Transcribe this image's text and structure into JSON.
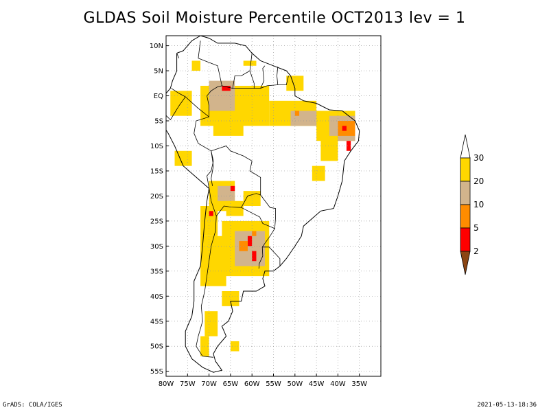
{
  "title": "GLDAS Soil Moisture Percentile OCT2013 lev = 1",
  "footer": {
    "left": "GrADS: COLA/IGES",
    "right": "2021-05-13-18:36"
  },
  "map": {
    "lon_range": [
      -80,
      -30
    ],
    "lat_range": [
      -56,
      12
    ],
    "lat_ticks": [
      {
        "v": 10,
        "label": "10N"
      },
      {
        "v": 5,
        "label": "5N"
      },
      {
        "v": 0,
        "label": "EQ"
      },
      {
        "v": -5,
        "label": "5S"
      },
      {
        "v": -10,
        "label": "10S"
      },
      {
        "v": -15,
        "label": "15S"
      },
      {
        "v": -20,
        "label": "20S"
      },
      {
        "v": -25,
        "label": "25S"
      },
      {
        "v": -30,
        "label": "30S"
      },
      {
        "v": -35,
        "label": "35S"
      },
      {
        "v": -40,
        "label": "40S"
      },
      {
        "v": -45,
        "label": "45S"
      },
      {
        "v": -50,
        "label": "50S"
      },
      {
        "v": -55,
        "label": "55S"
      }
    ],
    "lon_ticks": [
      {
        "v": -80,
        "label": "80W"
      },
      {
        "v": -75,
        "label": "75W"
      },
      {
        "v": -70,
        "label": "70W"
      },
      {
        "v": -65,
        "label": "65W"
      },
      {
        "v": -60,
        "label": "60W"
      },
      {
        "v": -55,
        "label": "55W"
      },
      {
        "v": -50,
        "label": "50W"
      },
      {
        "v": -45,
        "label": "45W"
      },
      {
        "v": -40,
        "label": "40W"
      },
      {
        "v": -35,
        "label": "35W"
      }
    ],
    "grid": true
  },
  "colorbar": {
    "levels": [
      "2",
      "5",
      "10",
      "20",
      "30"
    ],
    "colors": [
      "#8B4513",
      "#FF0000",
      "#FF8C00",
      "#D2B48C",
      "#FFD700",
      "#FFFFFF"
    ]
  },
  "colors": {
    "yellow": "#FFD700",
    "tan": "#D2B48C",
    "orange": "#FF8C00",
    "red": "#FF0000"
  },
  "regions": [
    {
      "class": "yellow",
      "lon": [
        -72,
        -56
      ],
      "lat": [
        -6,
        2
      ]
    },
    {
      "class": "yellow",
      "lon": [
        -56,
        -45
      ],
      "lat": [
        -6,
        -1
      ]
    },
    {
      "class": "yellow",
      "lon": [
        -79,
        -74
      ],
      "lat": [
        -4,
        1
      ]
    },
    {
      "class": "yellow",
      "lon": [
        -69,
        -62
      ],
      "lat": [
        -8,
        -5
      ]
    },
    {
      "class": "tan",
      "lon": [
        -70,
        -64
      ],
      "lat": [
        -3,
        3
      ]
    },
    {
      "class": "tan",
      "lon": [
        -51,
        -44
      ],
      "lat": [
        -6,
        -3
      ]
    },
    {
      "class": "yellow",
      "lon": [
        -45,
        -36
      ],
      "lat": [
        -9,
        -3
      ]
    },
    {
      "class": "tan",
      "lon": [
        -42,
        -36
      ],
      "lat": [
        -9,
        -4
      ]
    },
    {
      "class": "orange",
      "lon": [
        -40,
        -36
      ],
      "lat": [
        -8,
        -5
      ]
    },
    {
      "class": "yellow",
      "lon": [
        -44,
        -40
      ],
      "lat": [
        -13,
        -8
      ]
    },
    {
      "class": "yellow",
      "lon": [
        -52,
        -48
      ],
      "lat": [
        1,
        4
      ]
    },
    {
      "class": "yellow",
      "lon": [
        -70,
        -64
      ],
      "lat": [
        -23,
        -17
      ]
    },
    {
      "class": "tan",
      "lon": [
        -68,
        -64
      ],
      "lat": [
        -21,
        -18
      ]
    },
    {
      "class": "yellow",
      "lon": [
        -67,
        -56
      ],
      "lat": [
        -36,
        -25
      ]
    },
    {
      "class": "tan",
      "lon": [
        -64,
        -57
      ],
      "lat": [
        -34,
        -27
      ]
    },
    {
      "class": "yellow",
      "lon": [
        -72,
        -66
      ],
      "lat": [
        -38,
        -28
      ]
    },
    {
      "class": "yellow",
      "lon": [
        -72,
        -68
      ],
      "lat": [
        -28,
        -22
      ]
    },
    {
      "class": "yellow",
      "lon": [
        -66,
        -62
      ],
      "lat": [
        -24,
        -21
      ]
    },
    {
      "class": "yellow",
      "lon": [
        -62,
        -58
      ],
      "lat": [
        -22,
        -19
      ]
    },
    {
      "class": "yellow",
      "lon": [
        -78,
        -74
      ],
      "lat": [
        -14,
        -11
      ]
    },
    {
      "class": "yellow",
      "lon": [
        -67,
        -63
      ],
      "lat": [
        -42,
        -39
      ]
    },
    {
      "class": "yellow",
      "lon": [
        -71,
        -68
      ],
      "lat": [
        -48,
        -43
      ]
    },
    {
      "class": "yellow",
      "lon": [
        -72,
        -70
      ],
      "lat": [
        -52,
        -48
      ]
    },
    {
      "class": "yellow",
      "lon": [
        -65,
        -63
      ],
      "lat": [
        -51,
        -49
      ]
    },
    {
      "class": "yellow",
      "lon": [
        -74,
        -72
      ],
      "lat": [
        5,
        7
      ]
    },
    {
      "class": "yellow",
      "lon": [
        -62,
        -59
      ],
      "lat": [
        6,
        7
      ]
    },
    {
      "class": "yellow",
      "lon": [
        -46,
        -43
      ],
      "lat": [
        -17,
        -14
      ]
    }
  ],
  "hotspots": [
    {
      "class": "red",
      "lon": [
        -67,
        -65
      ],
      "lat": [
        1,
        2
      ]
    },
    {
      "class": "red",
      "lon": [
        -39,
        -38
      ],
      "lat": [
        -7,
        -6
      ]
    },
    {
      "class": "red",
      "lon": [
        -38,
        -37
      ],
      "lat": [
        -11,
        -9
      ]
    },
    {
      "class": "red",
      "lon": [
        -61,
        -60
      ],
      "lat": [
        -30,
        -28
      ]
    },
    {
      "class": "red",
      "lon": [
        -60,
        -59
      ],
      "lat": [
        -33,
        -31
      ]
    },
    {
      "class": "orange",
      "lon": [
        -63,
        -61
      ],
      "lat": [
        -31,
        -29
      ]
    },
    {
      "class": "red",
      "lon": [
        -70,
        -69
      ],
      "lat": [
        -24,
        -23
      ]
    },
    {
      "class": "orange",
      "lon": [
        -60,
        -59
      ],
      "lat": [
        -28,
        -27
      ]
    },
    {
      "class": "orange",
      "lon": [
        -50,
        -49
      ],
      "lat": [
        -4,
        -3
      ]
    },
    {
      "class": "red",
      "lon": [
        -65,
        -64
      ],
      "lat": [
        -19,
        -18
      ]
    }
  ],
  "coastline": [
    [
      -77.5,
      8.5
    ],
    [
      -76,
      9
    ],
    [
      -74,
      11
    ],
    [
      -72,
      12
    ],
    [
      -70,
      11.5
    ],
    [
      -68,
      10.5
    ],
    [
      -64,
      10.5
    ],
    [
      -61.5,
      10
    ],
    [
      -60,
      8.5
    ],
    [
      -58,
      7
    ],
    [
      -55,
      6
    ],
    [
      -52,
      5
    ],
    [
      -51,
      4
    ],
    [
      -50,
      1.5
    ],
    [
      -50,
      0
    ],
    [
      -48,
      -1
    ],
    [
      -45,
      -1.5
    ],
    [
      -42,
      -2.8
    ],
    [
      -39,
      -3
    ],
    [
      -36,
      -5
    ],
    [
      -35,
      -7
    ],
    [
      -35.2,
      -9
    ],
    [
      -37,
      -11
    ],
    [
      -38.5,
      -13
    ],
    [
      -39,
      -17
    ],
    [
      -40,
      -20
    ],
    [
      -41,
      -22.5
    ],
    [
      -44,
      -23
    ],
    [
      -48,
      -26
    ],
    [
      -48.5,
      -28
    ],
    [
      -50,
      -30
    ],
    [
      -52,
      -32.5
    ],
    [
      -53.5,
      -34
    ],
    [
      -55,
      -35
    ],
    [
      -57,
      -35
    ],
    [
      -57.5,
      -36.5
    ],
    [
      -57,
      -38
    ],
    [
      -59,
      -39
    ],
    [
      -62,
      -39
    ],
    [
      -62.5,
      -41
    ],
    [
      -65,
      -41
    ],
    [
      -64.5,
      -43
    ],
    [
      -65.5,
      -45
    ],
    [
      -67,
      -46
    ],
    [
      -66,
      -48
    ],
    [
      -68,
      -50
    ],
    [
      -69,
      -51.5
    ],
    [
      -68.5,
      -53
    ],
    [
      -67,
      -54.8
    ],
    [
      -69,
      -55.2
    ],
    [
      -71.5,
      -54.2
    ],
    [
      -74,
      -52.5
    ],
    [
      -75.5,
      -50
    ],
    [
      -75.5,
      -47
    ],
    [
      -74,
      -44
    ],
    [
      -73.5,
      -41
    ],
    [
      -73.5,
      -37
    ],
    [
      -72,
      -34
    ],
    [
      -71.5,
      -30
    ],
    [
      -71,
      -25
    ],
    [
      -70.5,
      -21
    ],
    [
      -70,
      -18.5
    ],
    [
      -72,
      -17
    ],
    [
      -76,
      -14
    ],
    [
      -78,
      -10
    ],
    [
      -79.5,
      -7.5
    ],
    [
      -81,
      -5.5
    ],
    [
      -80,
      -3
    ],
    [
      -80.5,
      -1.5
    ],
    [
      -80,
      0.5
    ],
    [
      -79,
      1.5
    ],
    [
      -78.5,
      3
    ],
    [
      -77.5,
      5
    ],
    [
      -77.5,
      7
    ],
    [
      -77.5,
      8.5
    ]
  ],
  "borders": [
    [
      [
        -70,
        -18.4
      ],
      [
        -69.5,
        -21
      ],
      [
        -68.3,
        -24
      ],
      [
        -68.5,
        -27
      ],
      [
        -69.5,
        -30
      ],
      [
        -70,
        -33
      ],
      [
        -70.5,
        -36
      ],
      [
        -71,
        -39
      ],
      [
        -71.8,
        -42
      ],
      [
        -71.5,
        -45
      ],
      [
        -72.5,
        -48
      ],
      [
        -73,
        -50
      ],
      [
        -71.5,
        -52
      ],
      [
        -69,
        -52.2
      ]
    ],
    [
      [
        -68.3,
        -24
      ],
      [
        -66.5,
        -22
      ],
      [
        -65,
        -22.2
      ],
      [
        -62.5,
        -22.3
      ],
      [
        -61,
        -20
      ],
      [
        -59,
        -19.5
      ],
      [
        -58,
        -19.8
      ],
      [
        -58,
        -16.3
      ],
      [
        -60.5,
        -15
      ],
      [
        -60,
        -13
      ],
      [
        -62,
        -12
      ],
      [
        -65,
        -11
      ],
      [
        -66,
        -10
      ],
      [
        -69.5,
        -11
      ],
      [
        -69,
        -14
      ],
      [
        -69.5,
        -16.5
      ],
      [
        -69.2,
        -18
      ]
    ],
    [
      [
        -62.5,
        -22.3
      ],
      [
        -58.2,
        -24.2
      ],
      [
        -57.5,
        -25.5
      ],
      [
        -54.7,
        -26.5
      ],
      [
        -54.5,
        -24.2
      ],
      [
        -54.5,
        -22.5
      ],
      [
        -55.8,
        -22.3
      ],
      [
        -58,
        -19.8
      ]
    ],
    [
      [
        -57.6,
        -30.2
      ],
      [
        -56,
        -30.2
      ],
      [
        -53.5,
        -32.5
      ],
      [
        -53.5,
        -34
      ]
    ],
    [
      [
        -57.6,
        -30.2
      ],
      [
        -57.5,
        -32
      ],
      [
        -58.3,
        -33.5
      ],
      [
        -58.4,
        -34.5
      ]
    ],
    [
      [
        -54.7,
        -26.5
      ],
      [
        -55.8,
        -28
      ],
      [
        -57.6,
        -30.2
      ]
    ],
    [
      [
        -70,
        -18.4
      ],
      [
        -70.5,
        -16
      ],
      [
        -69.5,
        -15
      ],
      [
        -69,
        -13
      ],
      [
        -69.5,
        -11
      ]
    ],
    [
      [
        -69.5,
        -11
      ],
      [
        -72.5,
        -9.5
      ],
      [
        -73.5,
        -7.5
      ],
      [
        -73,
        -5
      ],
      [
        -70,
        -4.2
      ],
      [
        -70,
        -2
      ],
      [
        -70.5,
        0
      ]
    ],
    [
      [
        -70,
        -4.2
      ],
      [
        -72.5,
        -2.5
      ],
      [
        -75.5,
        -0.2
      ],
      [
        -77,
        0.5
      ],
      [
        -78.8,
        1.5
      ]
    ],
    [
      [
        -75.5,
        -0.2
      ],
      [
        -77,
        -2
      ],
      [
        -79,
        -4.8
      ],
      [
        -80.5,
        -3.5
      ]
    ],
    [
      [
        -70.5,
        0
      ],
      [
        -69.5,
        1
      ],
      [
        -68,
        1.8
      ],
      [
        -67,
        2
      ],
      [
        -67.5,
        4
      ],
      [
        -68,
        6
      ],
      [
        -71,
        7
      ],
      [
        -72.5,
        7.5
      ],
      [
        -72,
        11
      ]
    ],
    [
      [
        -67,
        2
      ],
      [
        -64.5,
        1.5
      ],
      [
        -64,
        4
      ],
      [
        -62.5,
        4
      ],
      [
        -60.5,
        5
      ],
      [
        -60,
        8.5
      ]
    ],
    [
      [
        -64.5,
        1.5
      ],
      [
        -60,
        1.5
      ],
      [
        -58,
        1.5
      ],
      [
        -56.5,
        2
      ],
      [
        -54,
        2.2
      ],
      [
        -52,
        2.2
      ],
      [
        -51.5,
        4
      ]
    ],
    [
      [
        -60.5,
        5
      ],
      [
        -59.5,
        2.5
      ],
      [
        -59.5,
        1.5
      ]
    ],
    [
      [
        -58,
        1.5
      ],
      [
        -57.2,
        3
      ],
      [
        -57.5,
        5.5
      ],
      [
        -57,
        6
      ]
    ],
    [
      [
        -54,
        2.2
      ],
      [
        -54.2,
        4
      ],
      [
        -54,
        5.8
      ]
    ],
    [
      [
        -77.5,
        8.5
      ],
      [
        -77,
        7.5
      ]
    ]
  ]
}
